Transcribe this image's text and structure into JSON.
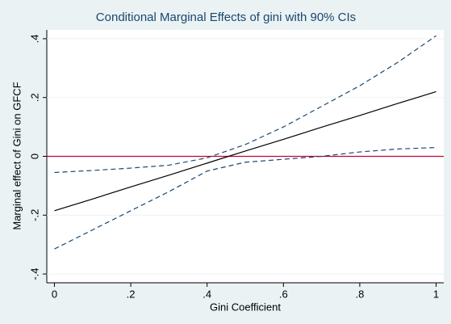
{
  "chart_data": {
    "type": "line",
    "title": "Conditional Marginal Effects of gini with 90% CIs",
    "xlabel": "Gini Coefficient",
    "ylabel": "Marginal effect of Gini on GFCF",
    "x": [
      0,
      0.1,
      0.2,
      0.3,
      0.4,
      0.5,
      0.6,
      0.7,
      0.8,
      0.9,
      1
    ],
    "series": [
      {
        "color": "#000000",
        "dash": false,
        "values": [
          -0.185,
          -0.145,
          -0.104,
          -0.064,
          -0.023,
          0.018,
          0.058,
          0.099,
          0.139,
          0.18,
          0.22
        ]
      },
      {
        "color": "#1a476f",
        "dash": true,
        "values": [
          -0.055,
          -0.048,
          -0.04,
          -0.03,
          -0.005,
          0.04,
          0.1,
          0.17,
          0.24,
          0.32,
          0.41
        ]
      },
      {
        "color": "#1a476f",
        "dash": true,
        "values": [
          -0.315,
          -0.25,
          -0.185,
          -0.12,
          -0.05,
          -0.02,
          -0.01,
          0.0,
          0.015,
          0.025,
          0.03
        ]
      }
    ],
    "hline": 0,
    "hline_color": "#c10534",
    "xlim": [
      -0.02,
      1.02
    ],
    "xticks": [
      0,
      {
        "value": 0.2,
        "label": ".2"
      },
      {
        "value": 0.4,
        "label": ".4"
      },
      {
        "value": 0.6,
        "label": ".6"
      },
      {
        "value": 0.8,
        "label": ".8"
      },
      1
    ],
    "ylim": [
      -0.43,
      0.43
    ],
    "yticks": [
      {
        "value": -0.4,
        "label": "-.4"
      },
      {
        "value": -0.2,
        "label": "-.2"
      },
      0,
      {
        "value": 0.2,
        "label": ".2"
      },
      {
        "value": 0.4,
        "label": ".4"
      }
    ],
    "grid": true
  }
}
